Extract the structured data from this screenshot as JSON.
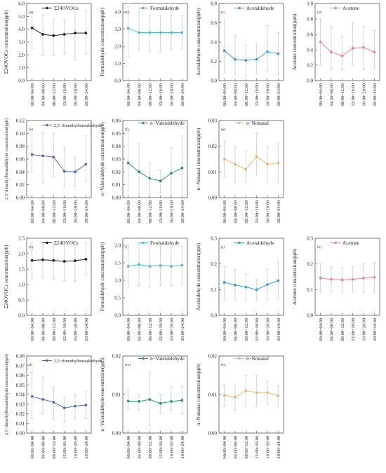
{
  "chart_data": {
    "type": "line",
    "x_categories": [
      "00:00~04:00",
      "04:00~08:00",
      "08:00~12:00",
      "12:00~16:00",
      "16:00~20:00",
      "20:00~24:00"
    ],
    "panels": [
      {
        "label": "(a)",
        "series_name": "Σ24OVOCs",
        "ylabel": "Σ24OVOCs concentration(ppb)",
        "ylim": [
          0,
          6
        ],
        "ticks": [
          "0.0",
          "1.0",
          "2.0",
          "3.0",
          "4.0",
          "5.0",
          "6.0"
        ],
        "color": "#222222",
        "legend": "inside",
        "values": [
          4.1,
          3.6,
          3.5,
          3.6,
          3.7,
          3.7
        ],
        "err_low": [
          2.5,
          1.95,
          1.95,
          2.1,
          1.6,
          2.1
        ],
        "err_high": [
          5.4,
          5.1,
          4.8,
          4.8,
          5.6,
          5.4
        ]
      },
      {
        "label": "(b)",
        "series_name": "Formaldehyde",
        "ylabel": "Formaldehyde concentration(ppb)",
        "ylim": [
          0,
          4.5
        ],
        "ticks": [
          "0.0",
          "1.0",
          "2.0",
          "3.0",
          "4.0"
        ],
        "color": "#3cbfe0",
        "legend": "inside",
        "values": [
          3.05,
          2.8,
          2.8,
          2.8,
          2.8,
          2.8
        ],
        "err_low": [
          1.4,
          1.8,
          1.7,
          1.7,
          1.8,
          1.8
        ],
        "err_high": [
          4.5,
          4.0,
          3.8,
          3.8,
          3.8,
          3.8
        ]
      },
      {
        "label": "(c)",
        "series_name": "Acetaldehyde",
        "ylabel": "Acetaldehyde concentration(ppb)",
        "ylim": [
          0,
          0.8
        ],
        "ticks": [
          "0.0",
          "0.2",
          "0.4",
          "0.6",
          "0.8"
        ],
        "color": "#29a8d8",
        "legend": "inside",
        "values": [
          0.31,
          0.22,
          0.21,
          0.22,
          0.3,
          0.28
        ],
        "err_low": [
          0.08,
          0.06,
          0.05,
          0.07,
          0.1,
          0.06
        ],
        "err_high": [
          0.64,
          0.47,
          0.37,
          0.38,
          0.57,
          0.5
        ]
      },
      {
        "label": "(d)",
        "series_name": "Acetone",
        "ylabel": "Acetone concentration(ppb)",
        "ylim": [
          0,
          1.0
        ],
        "ticks": [
          "0.0",
          "0.2",
          "0.4",
          "0.6",
          "0.8",
          "1.0"
        ],
        "color": "#f07f98",
        "legend": "inside",
        "values": [
          0.5,
          0.37,
          0.32,
          0.42,
          0.43,
          0.37
        ],
        "err_low": [
          0.2,
          0.14,
          0.14,
          0.2,
          0.14,
          0.15
        ],
        "err_high": [
          0.8,
          0.7,
          0.57,
          0.75,
          0.7,
          0.65
        ]
      },
      {
        "label": "(e)",
        "series_name": "2,5−dimethylbenzaldehyde",
        "ylabel": "2,5−dimethylbenzaldehyde concentration(ppb)",
        "ylim": [
          0,
          0.12
        ],
        "ticks": [
          "0.00",
          "0.02",
          "0.04",
          "0.06",
          "0.08",
          "0.10",
          "0.12"
        ],
        "color": "#4f6cc2",
        "legend": "inside",
        "values": [
          0.067,
          0.065,
          0.063,
          0.041,
          0.04,
          0.052
        ],
        "err_low": [
          0.04,
          0.023,
          0.033,
          0.018,
          0.018,
          0.025
        ],
        "err_high": [
          0.105,
          0.101,
          0.1,
          0.08,
          0.063,
          0.097
        ]
      },
      {
        "label": "(f)",
        "series_name": "n−Valeraldehyde",
        "ylabel": "n−Valeraldehyde concentration(ppb)",
        "ylim": [
          0,
          0.06
        ],
        "ticks": [
          "0.00",
          "0.01",
          "0.02",
          "0.03",
          "0.04",
          "0.05",
          "0.06"
        ],
        "color": "#1f9a6b",
        "legend": "top",
        "values": [
          0.027,
          0.02,
          0.015,
          0.013,
          0.019,
          0.023
        ],
        "err_low": [
          0.005,
          0.001,
          0.003,
          0.004,
          0.002,
          0.001
        ],
        "err_high": [
          0.052,
          0.042,
          0.027,
          0.021,
          0.039,
          0.048
        ]
      },
      {
        "label": "(g)",
        "series_name": "n−Nonanal",
        "ylabel": "n−Nonanal concentration(ppb)",
        "ylim": [
          0,
          0.03
        ],
        "ticks": [
          "0.00",
          "0.01",
          "0.02",
          "0.03"
        ],
        "color": "#f5b36e",
        "legend": "top",
        "values": [
          0.015,
          0.013,
          0.011,
          0.016,
          0.013,
          0.0135
        ],
        "err_low": [
          0.008,
          0.006,
          0.006,
          0.009,
          0.006,
          0.006
        ],
        "err_high": [
          0.022,
          0.02,
          0.018,
          0.025,
          0.02,
          0.021
        ]
      },
      {
        "label": "(h)",
        "series_name": "Σ24OVOCs",
        "ylabel": "Σ24OVOCs concentration(ppb)",
        "ylim": [
          0,
          2.5
        ],
        "ticks": [
          "0.0",
          "0.5",
          "1.0",
          "1.5",
          "2.0",
          "2.5"
        ],
        "color": "#222222",
        "legend": "inside",
        "values": [
          1.78,
          1.8,
          1.78,
          1.75,
          1.77,
          1.82
        ],
        "err_low": [
          1.2,
          1.23,
          1.15,
          1.12,
          1.12,
          1.3
        ],
        "err_high": [
          2.36,
          2.38,
          2.36,
          2.38,
          2.36,
          2.35
        ]
      },
      {
        "label": "(i)",
        "series_name": "Formaldehyde",
        "ylabel": "Formaldehyde concentration(ppb)",
        "ylim": [
          0,
          2.2
        ],
        "ticks": [
          "0.0",
          "0.5",
          "1.0",
          "1.5",
          "2.0"
        ],
        "color": "#3cbfe0",
        "legend": "inside",
        "values": [
          1.4,
          1.45,
          1.4,
          1.42,
          1.4,
          1.43
        ],
        "err_low": [
          0.8,
          0.85,
          0.8,
          0.85,
          0.85,
          0.87
        ],
        "err_high": [
          2.0,
          2.02,
          1.98,
          1.98,
          1.93,
          1.97
        ]
      },
      {
        "label": "(j)",
        "series_name": "Acetaldehyde",
        "ylabel": "Acetaldehyde concentration(ppb)",
        "ylim": [
          0,
          0.3
        ],
        "ticks": [
          "0.0",
          "0.1",
          "0.2",
          "0.3"
        ],
        "color": "#29a8d8",
        "legend": "inside",
        "values": [
          0.128,
          0.118,
          0.11,
          0.1,
          0.12,
          0.135
        ],
        "err_low": [
          0.06,
          0.06,
          0.06,
          0.06,
          0.06,
          0.065
        ],
        "err_high": [
          0.19,
          0.178,
          0.16,
          0.14,
          0.18,
          0.21
        ]
      },
      {
        "label": "(k)",
        "series_name": "Acetone",
        "ylabel": "Acetone concentration(ppb)",
        "ylim": [
          0,
          0.3
        ],
        "ticks": [
          "0.0",
          "0.1",
          "0.2",
          "0.3"
        ],
        "color": "#f07f98",
        "legend": "inside",
        "values": [
          0.145,
          0.14,
          0.138,
          0.14,
          0.145,
          0.148
        ],
        "err_low": [
          0.09,
          0.09,
          0.09,
          0.09,
          0.09,
          0.09
        ],
        "err_high": [
          0.2,
          0.19,
          0.185,
          0.19,
          0.2,
          0.205
        ]
      },
      {
        "label": "(l)",
        "series_name": "2,5−dimethylbenzaldehyde",
        "ylabel": "2,5−dimethylbenzaldehyde concentration(ppb)",
        "ylim": [
          0,
          0.08
        ],
        "ticks": [
          "0.00",
          "0.01",
          "0.02",
          "0.03",
          "0.04",
          "0.05",
          "0.06",
          "0.07",
          "0.08"
        ],
        "color": "#4f6cc2",
        "legend": "inside",
        "values": [
          0.038,
          0.035,
          0.032,
          0.026,
          0.028,
          0.029
        ],
        "err_low": [
          0.015,
          0.02,
          0.014,
          0.012,
          0.015,
          0.015
        ],
        "err_high": [
          0.063,
          0.059,
          0.048,
          0.037,
          0.04,
          0.043
        ]
      },
      {
        "label": "(m)",
        "series_name": "n−Valeraldehyde",
        "ylabel": "n−Valeraldehyde concentration(ppb)",
        "ylim": [
          0,
          0.02
        ],
        "ticks": [
          "0.00",
          "0.01",
          "0.02"
        ],
        "color": "#1f9a6b",
        "legend": "top",
        "values": [
          0.0083,
          0.0082,
          0.0087,
          0.0077,
          0.0082,
          0.0085
        ],
        "err_low": [
          0.006,
          0.006,
          0.002,
          0.005,
          0.006,
          0.005
        ],
        "err_high": [
          0.011,
          0.01,
          0.016,
          0.01,
          0.012,
          0.012
        ]
      },
      {
        "label": "(n)",
        "series_name": "n−Nonanal",
        "ylabel": "n−Nonanal concentration(ppb)",
        "ylim": [
          0,
          0.02
        ],
        "ticks": [
          "0.00",
          "0.01",
          "0.02"
        ],
        "color": "#f5b36e",
        "legend": "top",
        "values": [
          0.0098,
          0.0093,
          0.011,
          0.0105,
          0.0105,
          0.0097
        ],
        "err_low": [
          0.007,
          0.006,
          0.007,
          0.007,
          0.0075,
          0.007
        ],
        "err_high": [
          0.0125,
          0.0125,
          0.015,
          0.015,
          0.0135,
          0.0122
        ]
      }
    ]
  }
}
